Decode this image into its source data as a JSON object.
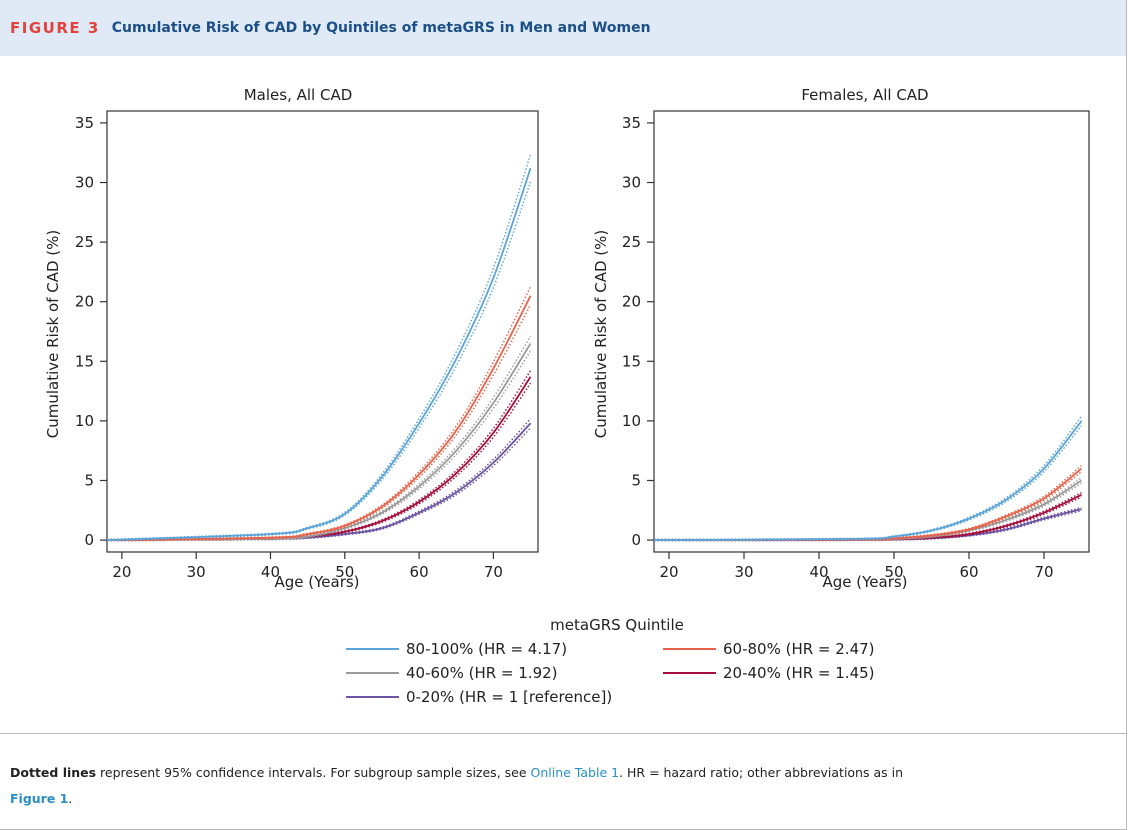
{
  "header": {
    "figure_label": "FIGURE 3",
    "title": "Cumulative Risk of CAD by Quintiles of metaGRS in Men and Women"
  },
  "caption": {
    "bold_lead": "Dotted lines",
    "text1": " represent 95% confidence intervals. For subgroup sample sizes, see ",
    "link1": "Online Table 1",
    "text2": ". HR = hazard ratio; other abbreviations as in",
    "link2": "Figure 1",
    "text3": "."
  },
  "legend": {
    "title": "metaGRS Quintile"
  },
  "colors": {
    "q5": "#5ba4d9",
    "q4": "#e8624a",
    "q3": "#9a9a9a",
    "q2": "#a50e3c",
    "q1": "#6a54a3",
    "header_bg": "#dfeaf6",
    "figure_label": "#e2423b",
    "title": "#1c4f85"
  },
  "chart_data": [
    {
      "type": "line",
      "title": "Males, All CAD",
      "xlabel": "Age (Years)",
      "ylabel": "Cumulative Risk of CAD (%)",
      "xlim": [
        18,
        76
      ],
      "ylim": [
        -1,
        36
      ],
      "x_ticks": [
        20,
        30,
        40,
        50,
        60,
        70
      ],
      "y_ticks": [
        0,
        5,
        10,
        15,
        20,
        25,
        30,
        35
      ],
      "grid": false,
      "confidence_intervals": "dotted",
      "x": [
        18,
        40,
        45,
        50,
        55,
        60,
        65,
        70,
        75
      ],
      "series": [
        {
          "name": "80-100% (HR = 4.17)",
          "color": "#5ba4d9",
          "values": [
            0,
            0.5,
            1.0,
            2.2,
            5.3,
            9.8,
            15.2,
            22.0,
            31.2
          ]
        },
        {
          "name": "60-80% (HR = 2.47)",
          "color": "#e8624a",
          "values": [
            0,
            0.2,
            0.5,
            1.2,
            2.8,
            5.5,
            9.2,
            14.4,
            20.5
          ]
        },
        {
          "name": "40-60% (HR = 1.92)",
          "color": "#9a9a9a",
          "values": [
            0,
            0.1,
            0.3,
            1.0,
            2.3,
            4.5,
            7.5,
            11.5,
            16.5
          ]
        },
        {
          "name": "20-40% (HR = 1.45)",
          "color": "#a50e3c",
          "values": [
            0,
            0.1,
            0.3,
            0.7,
            1.6,
            3.2,
            5.6,
            9.0,
            13.7
          ]
        },
        {
          "name": "0-20% (HR = 1 [reference])",
          "color": "#6a54a3",
          "values": [
            0,
            0.1,
            0.2,
            0.5,
            1.0,
            2.3,
            4.0,
            6.5,
            9.8
          ]
        }
      ]
    },
    {
      "type": "line",
      "title": "Females, All CAD",
      "xlabel": "Age (Years)",
      "ylabel": "Cumulative Risk of CAD (%)",
      "xlim": [
        18,
        76
      ],
      "ylim": [
        -1,
        36
      ],
      "x_ticks": [
        20,
        30,
        40,
        50,
        60,
        70
      ],
      "y_ticks": [
        0,
        5,
        10,
        15,
        20,
        25,
        30,
        35
      ],
      "grid": false,
      "confidence_intervals": "dotted",
      "x": [
        18,
        45,
        50,
        55,
        60,
        65,
        70,
        75
      ],
      "series": [
        {
          "name": "80-100% (HR = 4.17)",
          "color": "#5ba4d9",
          "values": [
            0,
            0.1,
            0.3,
            0.8,
            1.8,
            3.4,
            6.0,
            10.0
          ]
        },
        {
          "name": "60-80% (HR = 2.47)",
          "color": "#e8624a",
          "values": [
            0,
            0.05,
            0.15,
            0.4,
            0.9,
            2.0,
            3.5,
            6.0
          ]
        },
        {
          "name": "40-60% (HR = 1.92)",
          "color": "#9a9a9a",
          "values": [
            0,
            0.05,
            0.1,
            0.3,
            0.8,
            1.7,
            3.0,
            5.0
          ]
        },
        {
          "name": "20-40% (HR = 1.45)",
          "color": "#a50e3c",
          "values": [
            0,
            0.03,
            0.08,
            0.2,
            0.5,
            1.2,
            2.3,
            3.8
          ]
        },
        {
          "name": "0-20% (HR = 1 [reference])",
          "color": "#6a54a3",
          "values": [
            0,
            0.02,
            0.05,
            0.15,
            0.4,
            0.9,
            1.8,
            2.6
          ]
        }
      ]
    }
  ]
}
